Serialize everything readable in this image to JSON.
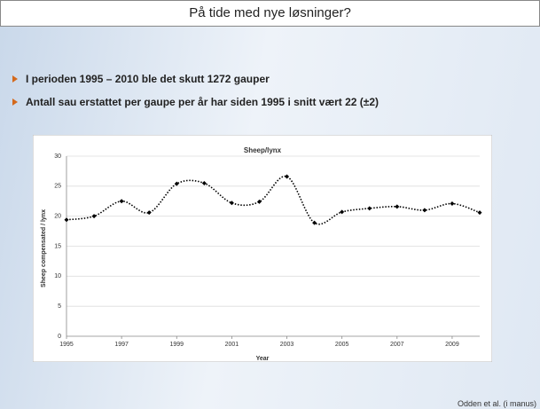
{
  "slide_title": "På tide med nye løsninger?",
  "bullets": [
    "I perioden 1995 – 2010 ble det skutt 1272 gauper",
    "Antall sau erstattet per gaupe per år har siden 1995 i snitt vært 22 (±2)"
  ],
  "citation": "Odden et al. (i manus)",
  "chart_data": {
    "type": "line",
    "title": "Sheep/lynx",
    "xlabel": "Year",
    "ylabel": "Sheep compensated / lynx",
    "x": [
      1995,
      1996,
      1997,
      1998,
      1999,
      2000,
      2001,
      2002,
      2003,
      2004,
      2005,
      2006,
      2007,
      2008,
      2009,
      2010
    ],
    "values": [
      19.4,
      20.0,
      22.5,
      20.6,
      25.4,
      25.5,
      22.2,
      22.4,
      26.6,
      18.9,
      20.7,
      21.3,
      21.6,
      21.0,
      22.1,
      20.6
    ],
    "color": "#000000",
    "xlim": [
      1995,
      2010
    ],
    "xticks": [
      1995,
      1997,
      1999,
      2001,
      2003,
      2005,
      2007,
      2009
    ],
    "ylim": [
      0,
      30
    ],
    "yticks": [
      0,
      5,
      10,
      15,
      20,
      25,
      30
    ],
    "grid": true
  }
}
